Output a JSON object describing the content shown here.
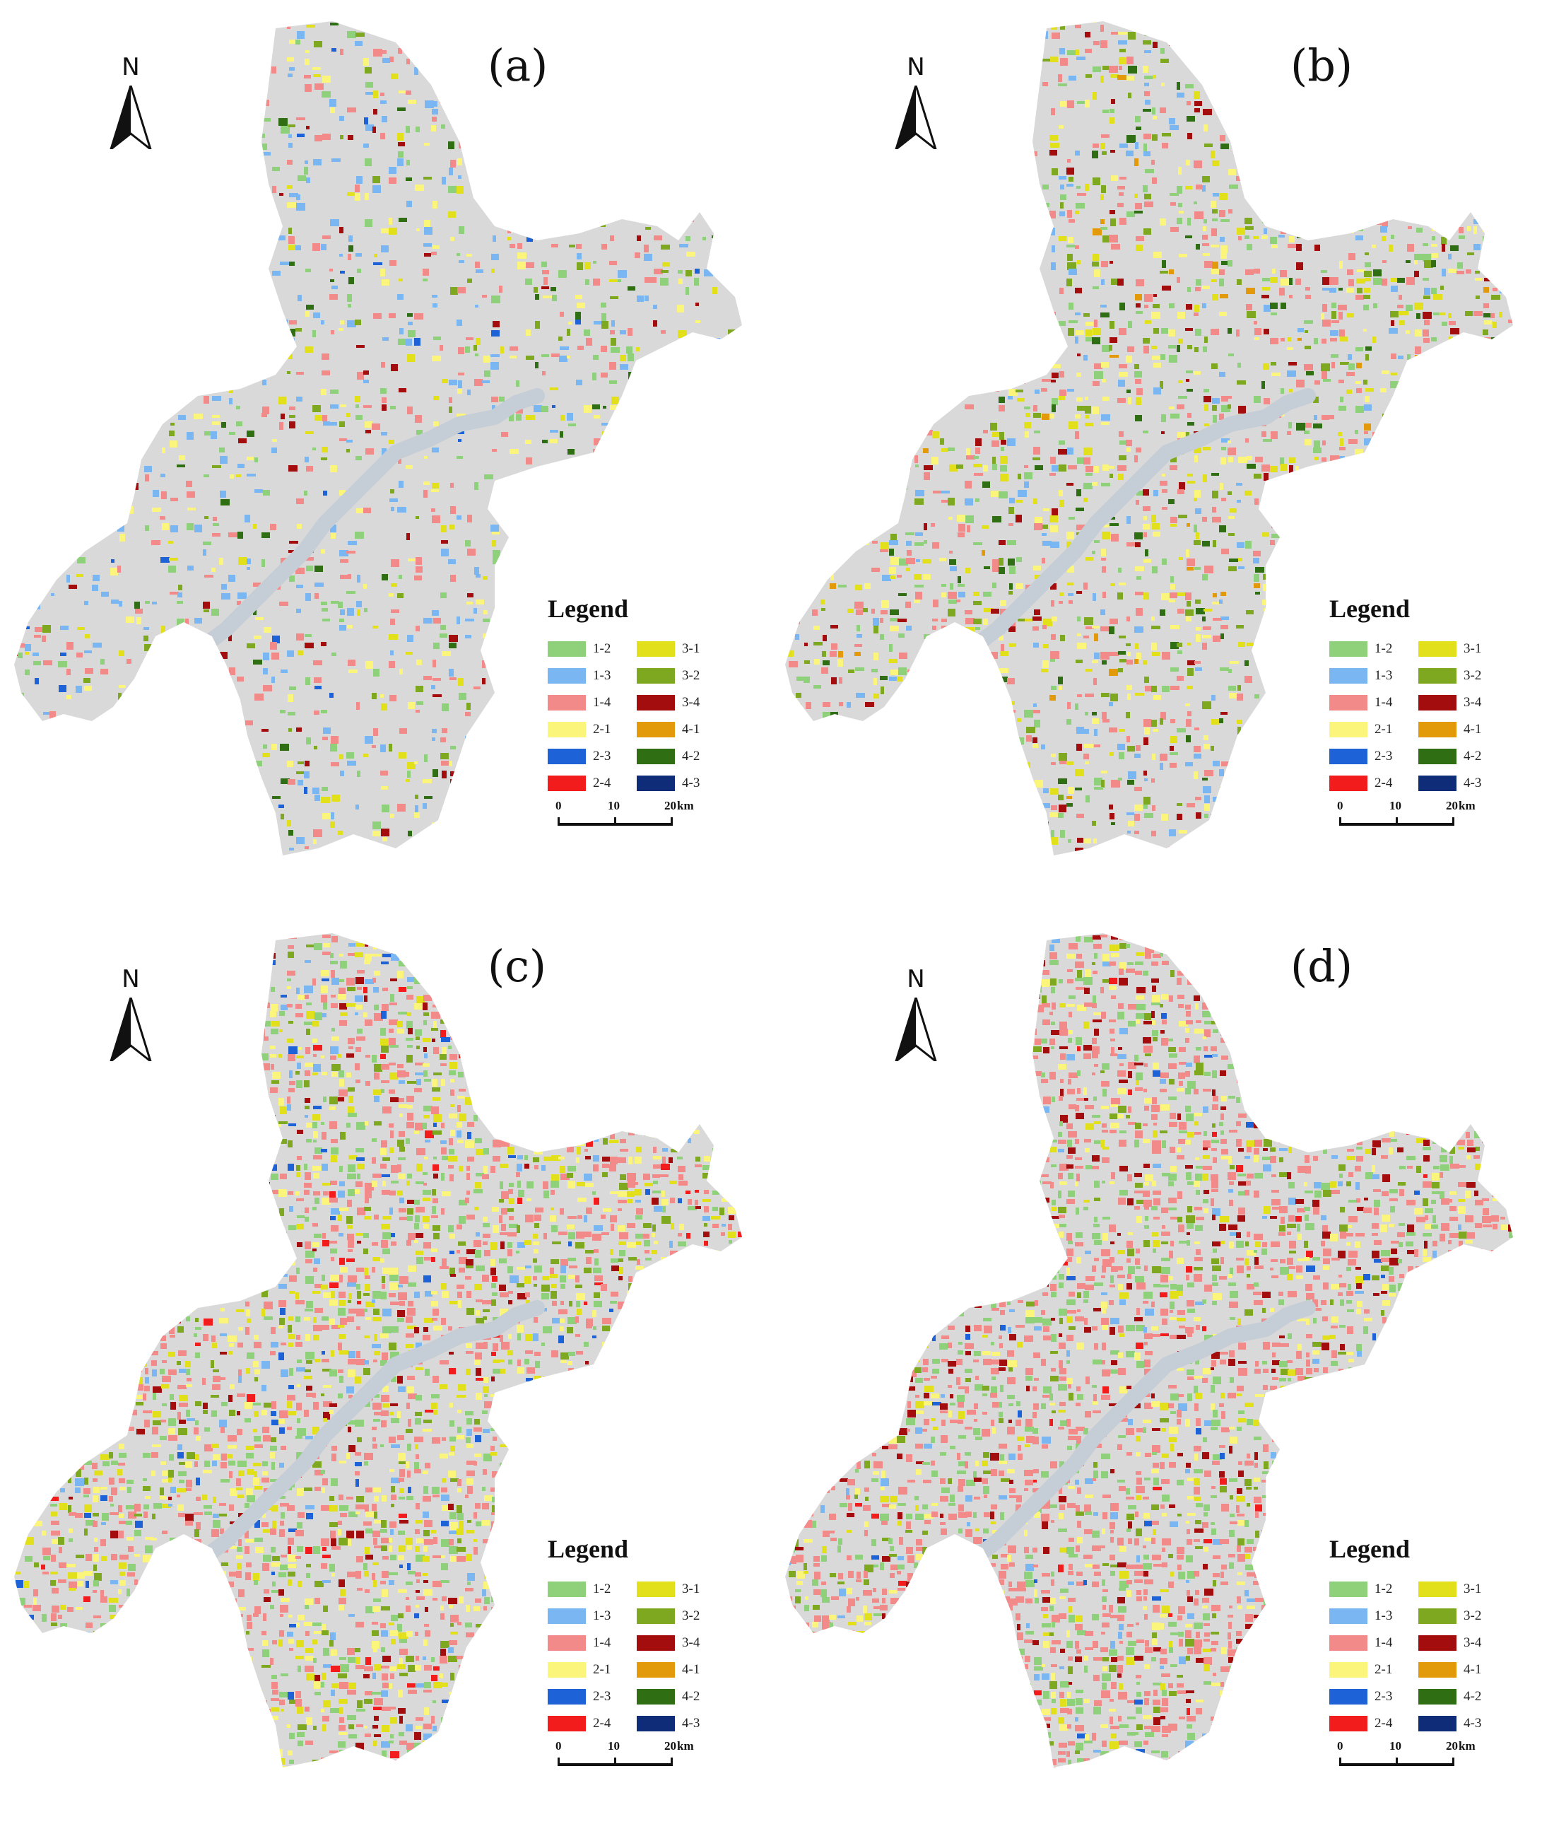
{
  "panels": [
    {
      "label": "(a)",
      "theme": "a"
    },
    {
      "label": "(b)",
      "theme": "b"
    },
    {
      "label": "(c)",
      "theme": "c"
    },
    {
      "label": "(d)",
      "theme": "d"
    }
  ],
  "north_letter": "N",
  "legend": {
    "title": "Legend",
    "items": [
      {
        "label": "1-2",
        "color": "#8fd07a"
      },
      {
        "label": "3-1",
        "color": "#e2e01a"
      },
      {
        "label": "1-3",
        "color": "#79b6f2"
      },
      {
        "label": "3-2",
        "color": "#7ea81f"
      },
      {
        "label": "1-4",
        "color": "#f28a8a"
      },
      {
        "label": "3-4",
        "color": "#a30d0d"
      },
      {
        "label": "2-1",
        "color": "#fbf57c"
      },
      {
        "label": "4-1",
        "color": "#e39a0a"
      },
      {
        "label": "2-3",
        "color": "#1e62d8"
      },
      {
        "label": "4-2",
        "color": "#2f6e12"
      },
      {
        "label": "2-4",
        "color": "#f21c1c"
      },
      {
        "label": "4-3",
        "color": "#0e2c78"
      }
    ]
  },
  "scalebar": {
    "ticks": [
      "0",
      "10",
      "20"
    ],
    "unit": "km"
  },
  "colors": {
    "land": "#d9d9d9",
    "river": "#c5cdd6"
  }
}
